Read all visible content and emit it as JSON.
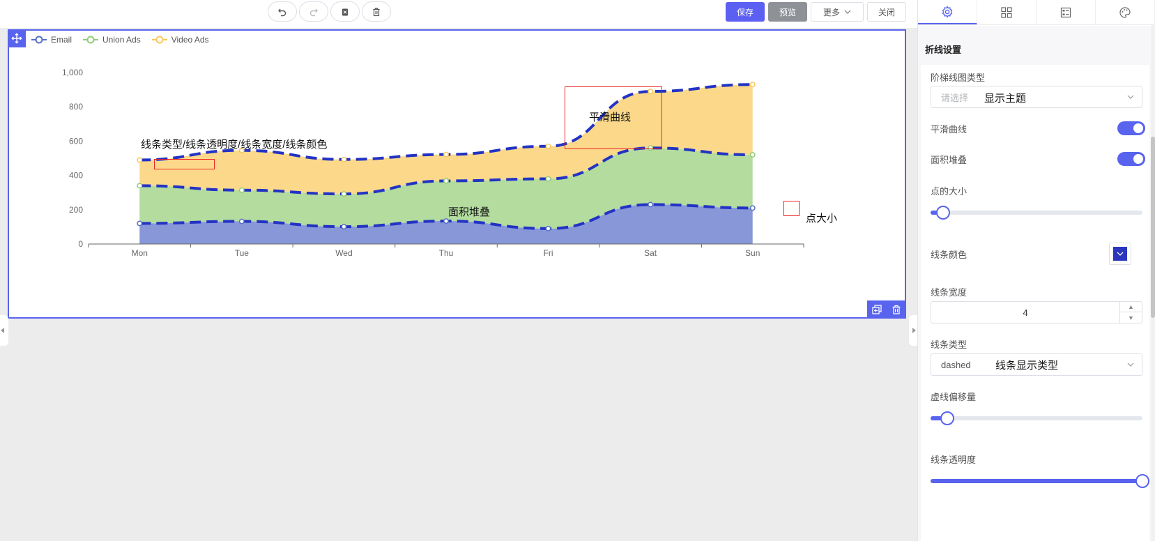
{
  "toolbar": {
    "save": "保存",
    "preview": "预览",
    "more": "更多",
    "close": "关闭"
  },
  "legend": [
    {
      "name": "Email",
      "color": "#5470c6"
    },
    {
      "name": "Union Ads",
      "color": "#91cc75"
    },
    {
      "name": "Video Ads",
      "color": "#fac858"
    }
  ],
  "annotations": {
    "line_props": "线条类型/线条透明度/线条宽度/线条颜色",
    "smooth": "平滑曲线",
    "area_stack": "面积堆叠",
    "point_size": "点大小"
  },
  "chart_data": {
    "type": "area",
    "stacked": true,
    "smooth": true,
    "categories": [
      "Mon",
      "Tue",
      "Wed",
      "Thu",
      "Fri",
      "Sat",
      "Sun"
    ],
    "y_ticks": [
      "0",
      "200",
      "400",
      "600",
      "800",
      "1,000"
    ],
    "ylim": [
      0,
      1000
    ],
    "line_style": "dashed",
    "line_color": "#2333c4",
    "series": [
      {
        "name": "Email",
        "values": [
          120,
          132,
          101,
          134,
          90,
          230,
          210
        ],
        "color": "#8797d8"
      },
      {
        "name": "Union Ads",
        "values": [
          220,
          182,
          191,
          234,
          290,
          330,
          310
        ],
        "color": "#b3dc9e"
      },
      {
        "name": "Video Ads",
        "values": [
          150,
          232,
          201,
          154,
          190,
          330,
          410
        ],
        "color": "#fcd98a"
      }
    ]
  },
  "panel": {
    "section_title": "折线设置",
    "step_type_label": "阶梯线图类型",
    "step_type_placeholder": "请选择",
    "step_type_annot": "显示主题",
    "smooth_label": "平滑曲线",
    "area_stack_label": "面积堆叠",
    "point_size_label": "点的大小",
    "point_size_value": 0.06,
    "line_color_label": "线条颜色",
    "line_width_label": "线条宽度",
    "line_width_value": "4",
    "line_type_label": "线条类型",
    "line_type_value": "dashed",
    "line_type_annot": "线条显示类型",
    "dash_offset_label": "虚线偏移量",
    "dash_offset_value": 0.08,
    "line_opacity_label": "线条透明度",
    "line_opacity_value": 1.0
  }
}
